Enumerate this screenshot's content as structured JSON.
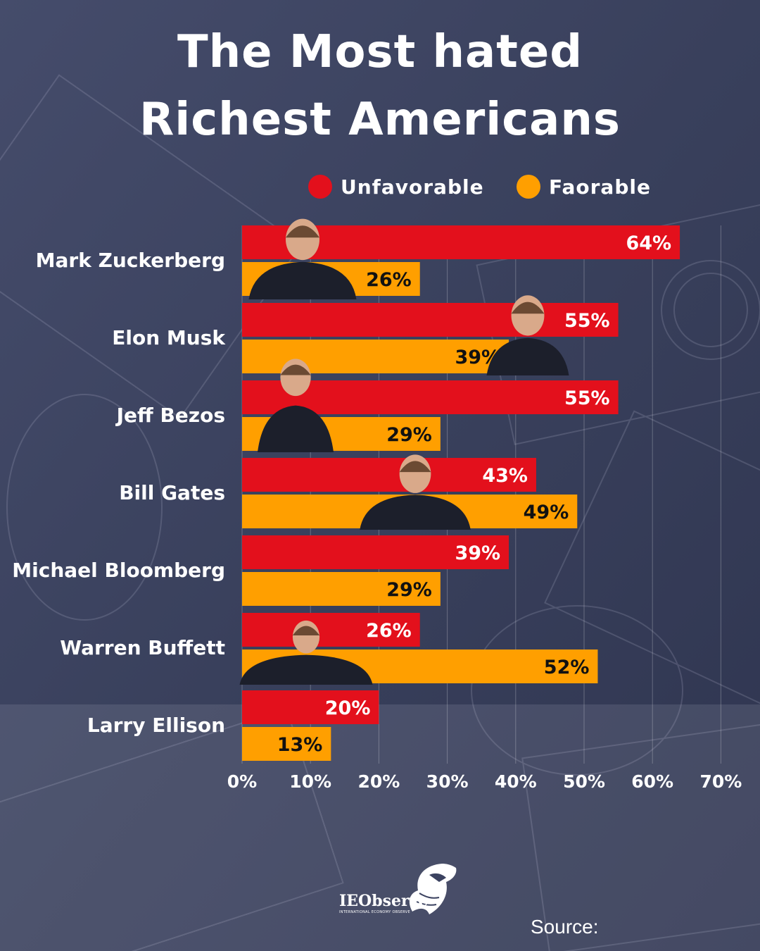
{
  "header": {
    "title_line1": "The Most hated",
    "title_line2": "Richest Americans"
  },
  "legend": {
    "unfavorable": {
      "label": "Unfavorable",
      "color": "#e3101c"
    },
    "favorable": {
      "label": "Faorable",
      "color": "#ff9f00"
    }
  },
  "chart_data": {
    "type": "bar",
    "orientation": "horizontal",
    "categories": [
      "Mark Zuckerberg",
      "Elon Musk",
      "Jeff Bezos",
      "Bill Gates",
      "Michael Bloomberg",
      "Warren Buffett",
      "Larry Ellison"
    ],
    "series": [
      {
        "name": "Unfavorable",
        "color": "#e3101c",
        "values": [
          64,
          55,
          55,
          43,
          39,
          26,
          20
        ]
      },
      {
        "name": "Faorable",
        "color": "#ff9f00",
        "values": [
          26,
          39,
          29,
          49,
          29,
          52,
          13
        ]
      }
    ],
    "data_labels": [
      [
        "64%",
        "55%",
        "55%",
        "43%",
        "39%",
        "26%",
        "20%"
      ],
      [
        "26%",
        "39%",
        "29%",
        "49%",
        "29%",
        "52%",
        "13%"
      ]
    ],
    "x_ticks": [
      "0%",
      "10%",
      "20%",
      "30%",
      "40%",
      "50%",
      "60%",
      "70%"
    ],
    "xlim": [
      0,
      70
    ],
    "grid": true,
    "legend_position": "top"
  },
  "photos": [
    "zuckerberg-photo",
    "musk-photo",
    "bezos-photo",
    "gates-photo",
    "buffett-photo"
  ],
  "footer": {
    "brand": "IEObserve",
    "brand_sub": "INTERNATIONAL ECONOMY OBSERVE",
    "source_label": "Source:"
  }
}
